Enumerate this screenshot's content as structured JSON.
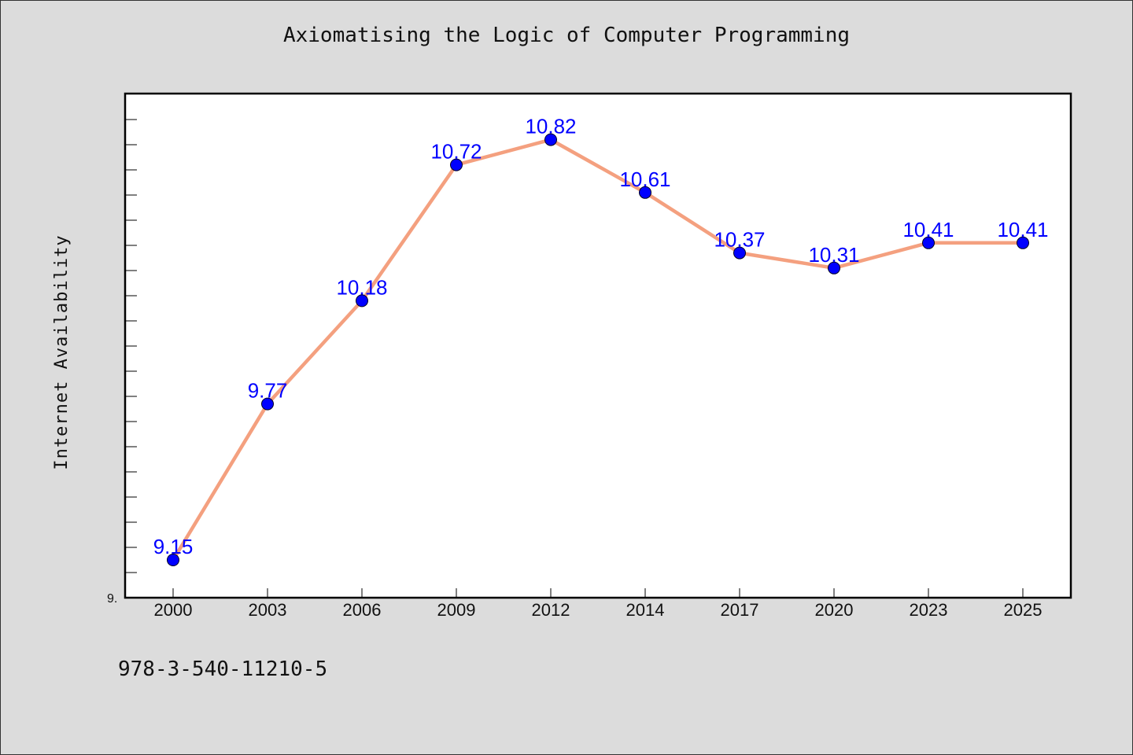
{
  "chart_data": {
    "type": "line",
    "title": "Axiomatising the Logic of Computer Programming",
    "xlabel": "",
    "ylabel": "Internet Availability",
    "categories": [
      "2000",
      "2003",
      "2006",
      "2009",
      "2012",
      "2014",
      "2017",
      "2020",
      "2023",
      "2025"
    ],
    "series": [
      {
        "values": [
          9.15,
          9.77,
          10.18,
          10.72,
          10.82,
          10.61,
          10.37,
          10.31,
          10.41,
          10.41
        ]
      }
    ],
    "data_labels": [
      "9.15",
      "9.77",
      "10.18",
      "10.72",
      "10.82",
      "10.61",
      "10.37",
      "10.31",
      "10.41",
      "10.41"
    ],
    "ylim": [
      9.0,
      11.0
    ],
    "y_tick_labels": [
      "9."
    ],
    "grid": false,
    "line_color": "#f4a07f",
    "marker_color": "#0000ff",
    "label_color": "#0000ff",
    "plot_background": "#ffffff",
    "figure_background": "#dcdcdc"
  },
  "footer": {
    "isbn": "978-3-540-11210-5"
  }
}
